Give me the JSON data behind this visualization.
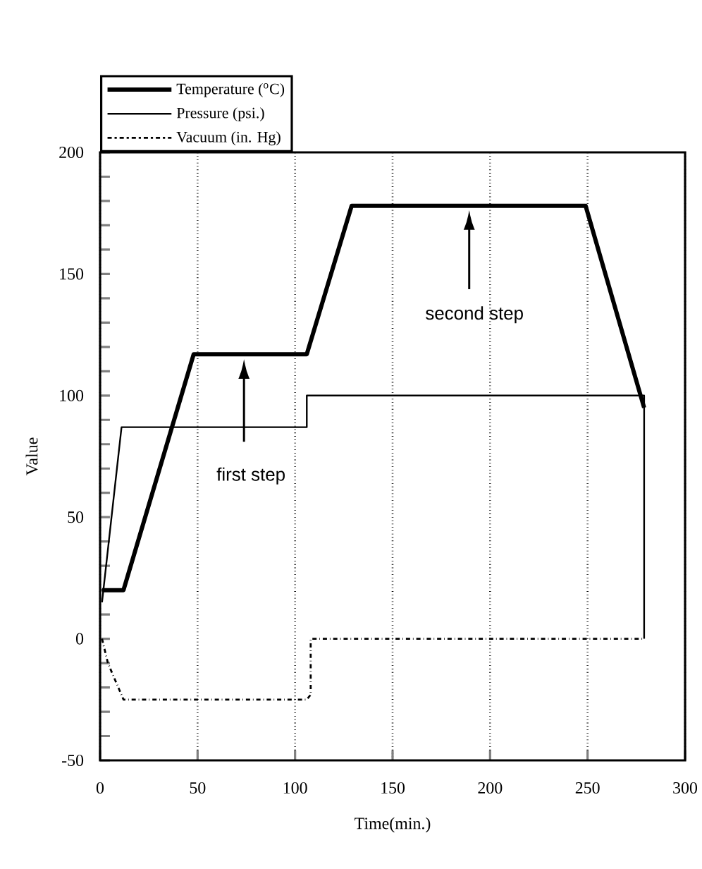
{
  "chart_data": {
    "type": "line",
    "xlabel": "Time(min.)",
    "ylabel": "Value",
    "xlim": [
      0,
      300
    ],
    "ylim": [
      -50,
      200
    ],
    "xticks": [
      0,
      50,
      100,
      150,
      200,
      250,
      300
    ],
    "yticks": [
      -50,
      0,
      50,
      100,
      150,
      200
    ],
    "grid": "x",
    "legend": "top left",
    "series": [
      {
        "name": "Temperature ($^{o}$C)",
        "color": "#000000",
        "line_style": "solid",
        "x": [
          1,
          12,
          48,
          106,
          129,
          249,
          279
        ],
        "values": [
          20,
          20,
          117,
          117,
          178,
          178,
          95
        ]
      },
      {
        "name": "Pressure (psi.)",
        "color": "#000000",
        "line_style": "solid",
        "x": [
          1,
          11,
          106,
          106,
          279,
          279
        ],
        "values": [
          15,
          87,
          87,
          100,
          100,
          0
        ]
      },
      {
        "name": "Vacuum (in. Hg)",
        "color": "#000000",
        "line_style": "dashdot",
        "x": [
          1,
          4,
          12,
          106,
          108,
          108,
          279
        ],
        "values": [
          0,
          -10,
          -25,
          -25,
          -23,
          0,
          0
        ]
      }
    ],
    "annotations": [
      "first step",
      "second step"
    ]
  }
}
